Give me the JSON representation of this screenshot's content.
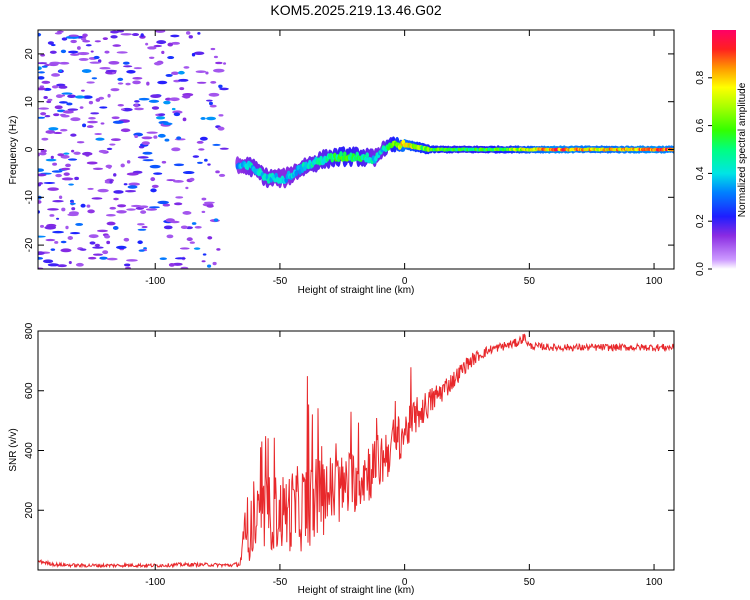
{
  "chart_data": [
    {
      "type": "heatmap",
      "title": "KOM5.2025.219.13.46.G02",
      "xlabel": "Height of straight line (km)",
      "ylabel": "Frequency (Hz)",
      "xlim": [
        -147,
        108
      ],
      "ylim": [
        -25,
        25
      ],
      "x_ticks": [
        -100,
        -50,
        0,
        50,
        100
      ],
      "y_ticks": [
        -20,
        -10,
        0,
        10,
        20
      ],
      "x_tick_labels": [
        "-100",
        "-50",
        "0",
        "50",
        "100"
      ],
      "y_tick_labels": [
        "-20",
        "-10",
        "0",
        "10",
        "20"
      ],
      "colorbar": {
        "label": "Normalized spectral amplitude",
        "range": [
          0,
          1
        ],
        "ticks": [
          0.0,
          0.2,
          0.4,
          0.6,
          0.8
        ],
        "tick_labels": [
          "0.0",
          "0.2",
          "0.4",
          "0.6",
          "0.8"
        ]
      },
      "signal_track": [
        {
          "x": -67,
          "freq": -3.5,
          "amp": 0.35
        },
        {
          "x": -62,
          "freq": -3.5,
          "amp": 0.45
        },
        {
          "x": -55,
          "freq": -6.0,
          "amp": 0.45
        },
        {
          "x": -48,
          "freq": -6.0,
          "amp": 0.4
        },
        {
          "x": -40,
          "freq": -3.5,
          "amp": 0.45
        },
        {
          "x": -32,
          "freq": -2.0,
          "amp": 0.5
        },
        {
          "x": -25,
          "freq": -1.5,
          "amp": 0.6
        },
        {
          "x": -18,
          "freq": -1.5,
          "amp": 0.55
        },
        {
          "x": -12,
          "freq": -2.0,
          "amp": 0.45
        },
        {
          "x": -9,
          "freq": 0.0,
          "amp": 0.45
        },
        {
          "x": -5,
          "freq": 1.0,
          "amp": 0.6
        },
        {
          "x": 0,
          "freq": 1.0,
          "amp": 0.9
        },
        {
          "x": 5,
          "freq": 0.5,
          "amp": 0.7
        },
        {
          "x": 10,
          "freq": 0.0,
          "amp": 0.65
        },
        {
          "x": 20,
          "freq": 0.0,
          "amp": 0.6
        },
        {
          "x": 30,
          "freq": 0.0,
          "amp": 0.6
        },
        {
          "x": 40,
          "freq": 0.0,
          "amp": 0.65
        },
        {
          "x": 50,
          "freq": 0.0,
          "amp": 0.8
        },
        {
          "x": 60,
          "freq": 0.0,
          "amp": 0.95
        },
        {
          "x": 70,
          "freq": 0.0,
          "amp": 0.9
        },
        {
          "x": 80,
          "freq": 0.0,
          "amp": 0.85
        },
        {
          "x": 90,
          "freq": 0.0,
          "amp": 0.9
        },
        {
          "x": 100,
          "freq": 0.0,
          "amp": 0.95
        },
        {
          "x": 108,
          "freq": 0.0,
          "amp": 0.9
        }
      ],
      "noise_region": {
        "x_range": [
          -147,
          -72
        ],
        "freq_range": [
          -25,
          25
        ],
        "amp_range": [
          0.1,
          0.35
        ]
      }
    },
    {
      "type": "line",
      "xlabel": "Height of straight line (km)",
      "ylabel": "SNR (v/v)",
      "xlim": [
        -147,
        108
      ],
      "ylim": [
        0,
        800
      ],
      "x_ticks": [
        -100,
        -50,
        0,
        50,
        100
      ],
      "y_ticks": [
        200,
        400,
        600,
        800
      ],
      "x_tick_labels": [
        "-100",
        "-50",
        "0",
        "50",
        "100"
      ],
      "y_tick_labels": [
        "200",
        "400",
        "600",
        "800"
      ],
      "series": [
        {
          "name": "SNR",
          "color": "#e8282b",
          "x": [
            -147,
            -140,
            -130,
            -120,
            -110,
            -100,
            -90,
            -80,
            -70,
            -66,
            -64,
            -60,
            -55,
            -50,
            -45,
            -40,
            -35,
            -30,
            -25,
            -20,
            -15,
            -10,
            -5,
            0,
            5,
            10,
            15,
            20,
            25,
            30,
            35,
            40,
            45,
            48,
            50,
            60,
            70,
            80,
            90,
            100,
            108
          ],
          "values": [
            30,
            18,
            15,
            15,
            16,
            15,
            18,
            18,
            16,
            20,
            110,
            150,
            190,
            190,
            200,
            210,
            240,
            260,
            270,
            300,
            330,
            360,
            420,
            460,
            520,
            560,
            600,
            640,
            690,
            720,
            740,
            750,
            760,
            780,
            750,
            745,
            745,
            745,
            745,
            745,
            745
          ],
          "noise_amplitude": [
            6,
            6,
            6,
            6,
            6,
            6,
            6,
            6,
            6,
            8,
            90,
            110,
            130,
            130,
            140,
            150,
            140,
            130,
            120,
            110,
            110,
            100,
            90,
            70,
            60,
            50,
            40,
            30,
            25,
            20,
            15,
            15,
            15,
            15,
            12,
            12,
            12,
            12,
            12,
            12,
            12
          ]
        }
      ]
    }
  ]
}
